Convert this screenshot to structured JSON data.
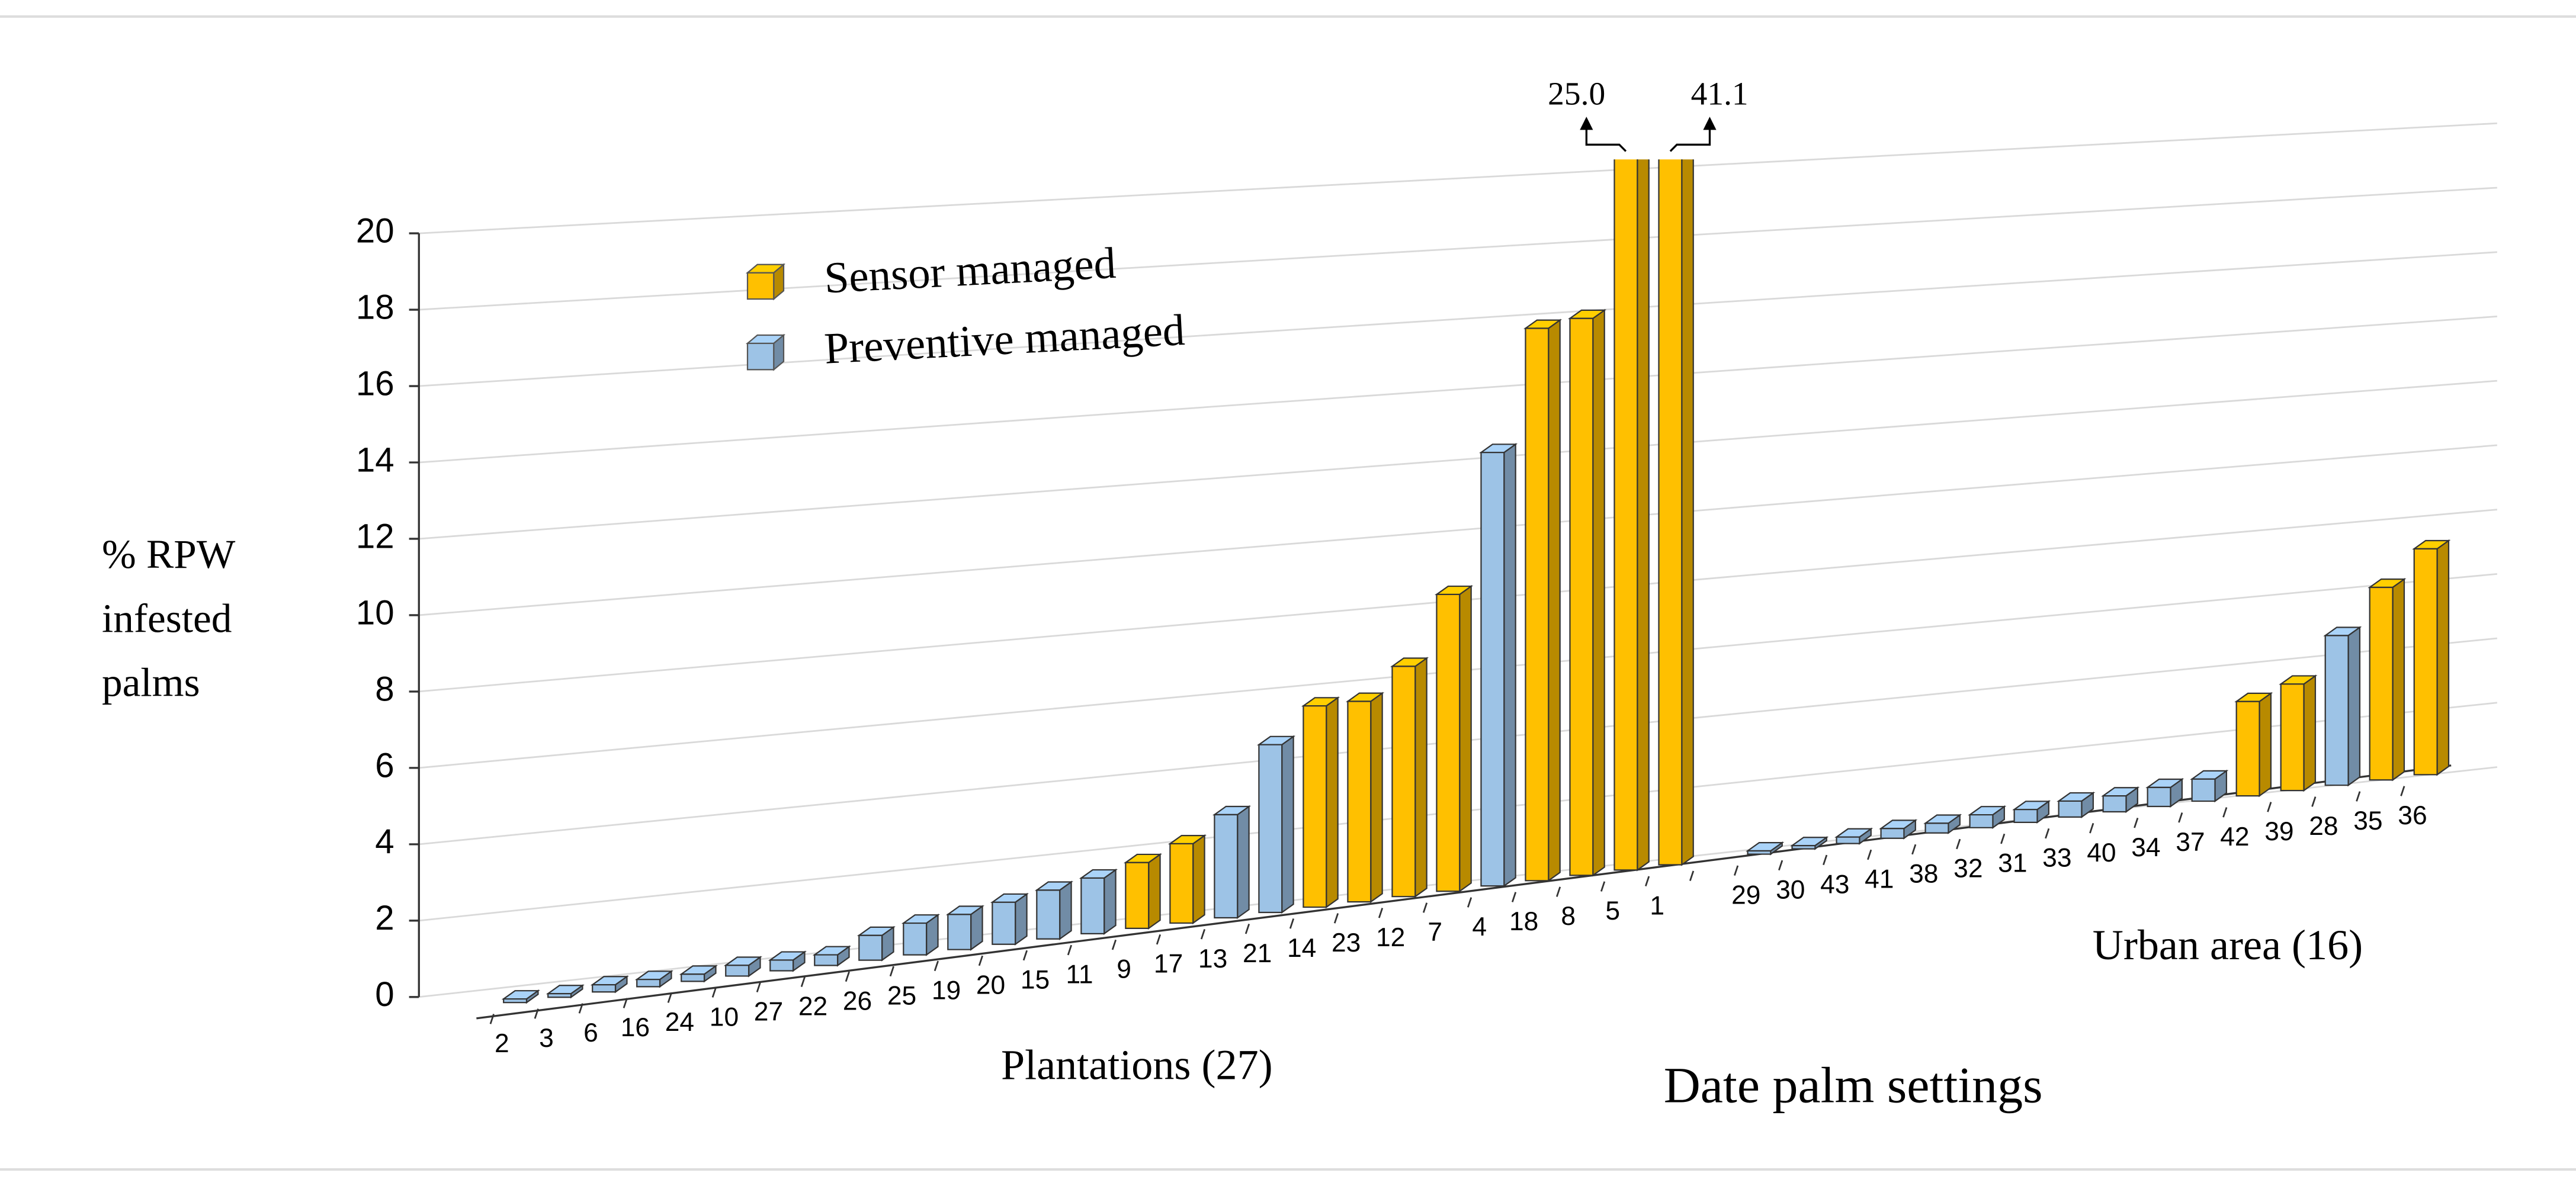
{
  "chart_data": {
    "type": "bar3d",
    "xlabel": "Date palm settings",
    "ylabel": [
      "% RPW",
      "infested",
      "palms"
    ],
    "annotations": [
      "Plantations (27)",
      "Urban area (16)"
    ],
    "categories": [
      "2",
      "3",
      "6",
      "16",
      "24",
      "10",
      "27",
      "22",
      "26",
      "25",
      "19",
      "20",
      "15",
      "11",
      "9",
      "17",
      "13",
      "21",
      "14",
      "23",
      "12",
      "7",
      "4",
      "18",
      "8",
      "5",
      "1",
      null,
      "29",
      "30",
      "43",
      "41",
      "38",
      "32",
      "31",
      "33",
      "40",
      "34",
      "37",
      "42",
      "39",
      "28",
      "35",
      "36"
    ],
    "series": [
      {
        "name": "Sensor managed",
        "color": "#ffc000",
        "values": [
          null,
          null,
          null,
          null,
          null,
          null,
          null,
          null,
          null,
          null,
          null,
          null,
          null,
          null,
          1.9,
          2.3,
          null,
          null,
          5.9,
          5.9,
          6.8,
          8.8,
          null,
          16.5,
          16.7,
          25.0,
          41.1,
          null,
          null,
          null,
          null,
          null,
          null,
          null,
          null,
          null,
          null,
          null,
          null,
          3.0,
          3.4,
          null,
          6.2,
          7.3
        ],
        "value_labels": [
          null,
          null,
          null,
          null,
          null,
          null,
          null,
          null,
          null,
          null,
          null,
          null,
          null,
          null,
          null,
          null,
          null,
          null,
          null,
          null,
          null,
          null,
          null,
          null,
          null,
          "25.0",
          "41.1",
          null,
          null,
          null,
          null,
          null,
          null,
          null,
          null,
          null,
          null,
          null,
          null,
          null,
          null,
          null,
          null,
          null
        ]
      },
      {
        "name": "Preventive managed",
        "color": "#9dc3e6",
        "values": [
          0.1,
          0.1,
          0.2,
          0.2,
          0.2,
          0.3,
          0.3,
          0.3,
          0.7,
          0.9,
          1.0,
          1.2,
          1.4,
          1.6,
          null,
          null,
          3.0,
          4.9,
          null,
          null,
          null,
          null,
          12.9,
          null,
          null,
          null,
          null,
          null,
          0.1,
          0.1,
          0.2,
          0.3,
          0.3,
          0.4,
          0.4,
          0.5,
          0.5,
          0.6,
          0.7,
          null,
          null,
          4.8,
          null,
          null
        ]
      }
    ],
    "ylim": [
      0,
      20
    ],
    "yticks": [
      0,
      2,
      4,
      6,
      8,
      10,
      12,
      14,
      16,
      18,
      20
    ],
    "grid": true,
    "legend": "upper left"
  }
}
